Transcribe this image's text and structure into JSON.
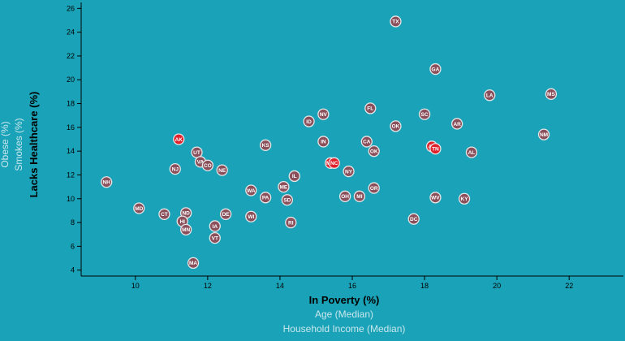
{
  "chart_data": {
    "type": "scatter",
    "x_axis": {
      "active_label": "In Poverty (%)",
      "inactive_labels": [
        "Age (Median)",
        "Household Income (Median)"
      ],
      "range": [
        8.5,
        23.5
      ],
      "ticks": [
        10,
        12,
        14,
        16,
        18,
        20,
        22
      ]
    },
    "y_axis": {
      "active_label": "Lacks Healthcare (%)",
      "inactive_labels": [
        "Smokes (%)",
        "Obese (%)"
      ],
      "range": [
        3.5,
        26.5
      ],
      "ticks": [
        4,
        6,
        8,
        10,
        12,
        14,
        16,
        18,
        20,
        22,
        24,
        26
      ]
    },
    "highlight_color": "#e0202a",
    "marker_color": "#8a4f5a",
    "points": [
      {
        "abbr": "TX",
        "x": 17.2,
        "y": 24.9
      },
      {
        "abbr": "GA",
        "x": 18.3,
        "y": 20.9
      },
      {
        "abbr": "LA",
        "x": 19.8,
        "y": 18.7
      },
      {
        "abbr": "MS",
        "x": 21.5,
        "y": 18.8
      },
      {
        "abbr": "FL",
        "x": 16.5,
        "y": 17.6
      },
      {
        "abbr": "NV",
        "x": 15.2,
        "y": 17.1
      },
      {
        "abbr": "SC",
        "x": 18.0,
        "y": 17.1
      },
      {
        "abbr": "ID",
        "x": 14.8,
        "y": 16.5
      },
      {
        "abbr": "AR",
        "x": 18.9,
        "y": 16.3
      },
      {
        "abbr": "OK",
        "x": 17.2,
        "y": 16.1
      },
      {
        "abbr": "NM",
        "x": 21.3,
        "y": 15.4
      },
      {
        "abbr": "AK",
        "x": 11.2,
        "y": 15.0,
        "highlight": true
      },
      {
        "abbr": "IN",
        "x": 15.2,
        "y": 14.8
      },
      {
        "abbr": "CA",
        "x": 16.4,
        "y": 14.8
      },
      {
        "abbr": "KS",
        "x": 13.6,
        "y": 14.5
      },
      {
        "abbr": "AZ",
        "x": 18.2,
        "y": 14.4,
        "highlight": true
      },
      {
        "abbr": "TN",
        "x": 18.3,
        "y": 14.2,
        "highlight": true
      },
      {
        "abbr": "UT",
        "x": 11.7,
        "y": 13.9
      },
      {
        "abbr": "AL",
        "x": 19.3,
        "y": 13.9
      },
      {
        "abbr": "OK",
        "x": 16.6,
        "y": 14.0
      },
      {
        "abbr": "VA",
        "x": 11.8,
        "y": 13.1
      },
      {
        "abbr": "CO",
        "x": 12.0,
        "y": 12.8
      },
      {
        "abbr": "MO",
        "x": 15.4,
        "y": 13.0,
        "highlight": true
      },
      {
        "abbr": "NC",
        "x": 15.5,
        "y": 13.0,
        "highlight": true
      },
      {
        "abbr": "NJ",
        "x": 11.1,
        "y": 12.5
      },
      {
        "abbr": "NE",
        "x": 12.4,
        "y": 12.4
      },
      {
        "abbr": "NY",
        "x": 15.9,
        "y": 12.3
      },
      {
        "abbr": "IL",
        "x": 14.4,
        "y": 11.9
      },
      {
        "abbr": "NH",
        "x": 9.2,
        "y": 11.4
      },
      {
        "abbr": "ME",
        "x": 14.1,
        "y": 11.0
      },
      {
        "abbr": "WA",
        "x": 13.2,
        "y": 10.7
      },
      {
        "abbr": "OR",
        "x": 16.6,
        "y": 10.9
      },
      {
        "abbr": "PA",
        "x": 13.6,
        "y": 10.1
      },
      {
        "abbr": "SD",
        "x": 14.2,
        "y": 9.9
      },
      {
        "abbr": "OH",
        "x": 15.8,
        "y": 10.2
      },
      {
        "abbr": "MI",
        "x": 16.2,
        "y": 10.2
      },
      {
        "abbr": "WV",
        "x": 18.3,
        "y": 10.1
      },
      {
        "abbr": "KY",
        "x": 19.1,
        "y": 10.0
      },
      {
        "abbr": "MD",
        "x": 10.1,
        "y": 9.2
      },
      {
        "abbr": "CT",
        "x": 10.8,
        "y": 8.7
      },
      {
        "abbr": "ND",
        "x": 11.4,
        "y": 8.8
      },
      {
        "abbr": "DE",
        "x": 12.5,
        "y": 8.7
      },
      {
        "abbr": "WI",
        "x": 13.2,
        "y": 8.5
      },
      {
        "abbr": "DC",
        "x": 17.7,
        "y": 8.3
      },
      {
        "abbr": "HI",
        "x": 11.3,
        "y": 8.1
      },
      {
        "abbr": "RI",
        "x": 14.3,
        "y": 8.0
      },
      {
        "abbr": "IA",
        "x": 12.2,
        "y": 7.7
      },
      {
        "abbr": "MN",
        "x": 11.4,
        "y": 7.4
      },
      {
        "abbr": "VT",
        "x": 12.2,
        "y": 6.7
      },
      {
        "abbr": "MA",
        "x": 11.6,
        "y": 4.6
      }
    ]
  }
}
